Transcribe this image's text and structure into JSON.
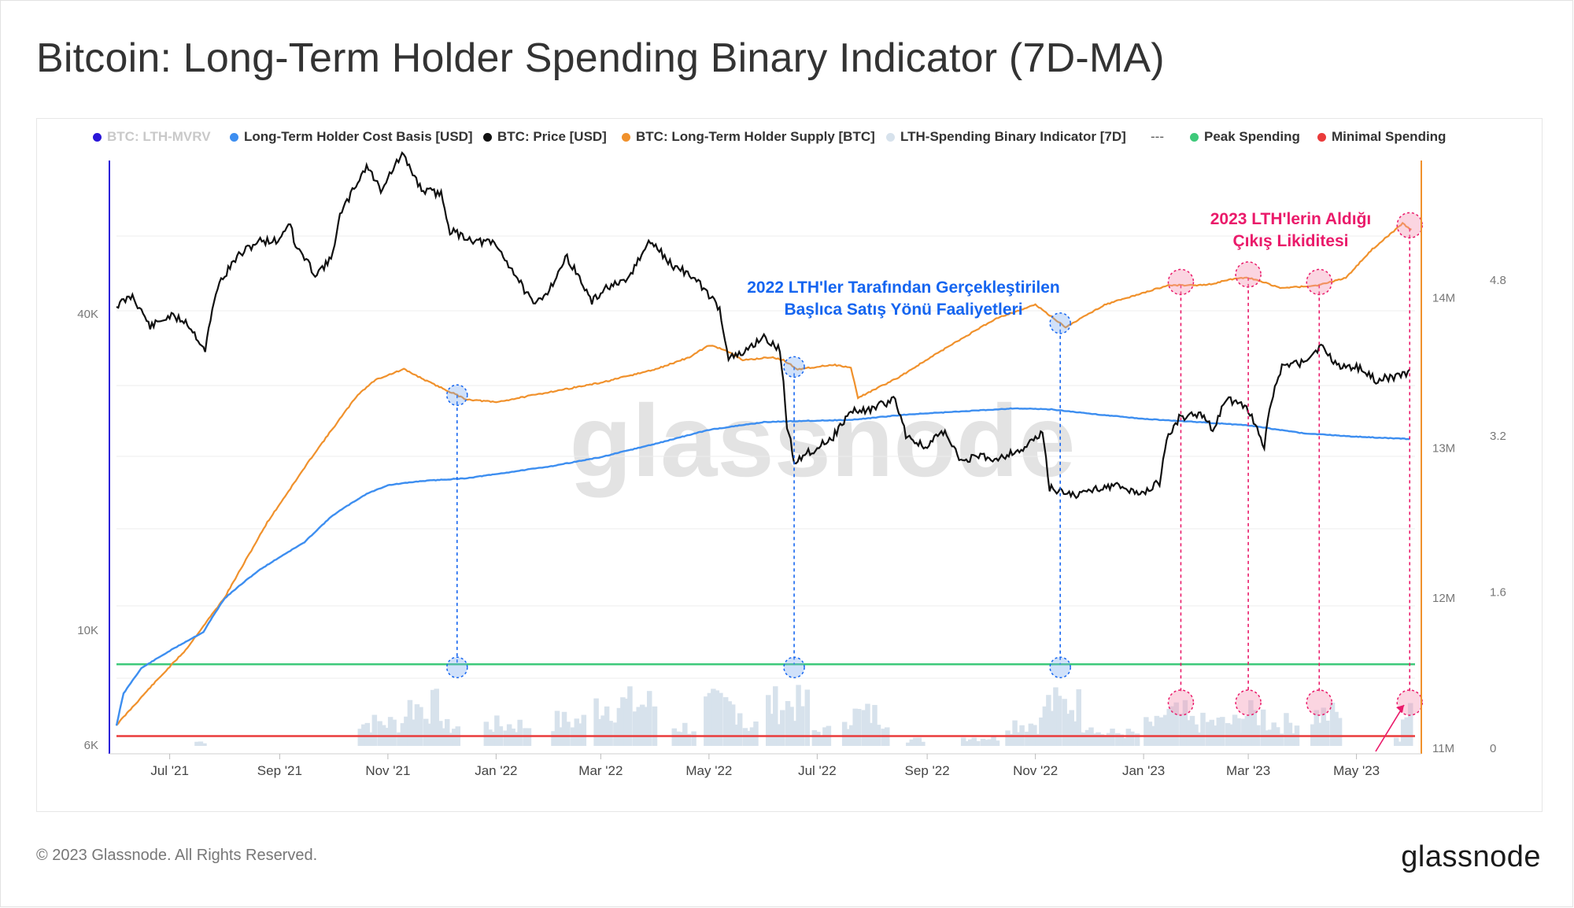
{
  "title": "Bitcoin: Long-Term Holder Spending Binary Indicator (7D-MA)",
  "footer": {
    "copyright": "© 2023 Glassnode. All Rights Reserved.",
    "logo": "glassnode"
  },
  "watermark": "glassnode",
  "legend": [
    {
      "label": "BTC: LTH-MVRV",
      "color": "#2a16d8",
      "muted": true
    },
    {
      "label": "Long-Term Holder Cost Basis [USD]",
      "color": "#3d8ef0"
    },
    {
      "label": "BTC: Price [USD]",
      "color": "#111111"
    },
    {
      "label": "BTC: Long-Term Holder Supply [BTC]",
      "color": "#f0912c"
    },
    {
      "label": "LTH-Spending Binary Indicator [7D]",
      "color": "#d7e2ec"
    },
    {
      "label": "---",
      "color": ""
    },
    {
      "label": "Peak Spending",
      "color": "#3ec97a"
    },
    {
      "label": "Minimal Spending",
      "color": "#ea3b3b"
    }
  ],
  "annotations": {
    "blue": [
      "2022 LTH'ler Tarafından Gerçekleştirilen",
      "Başlıca Satış Yönü Faaliyetleri"
    ],
    "pink": [
      "2023 LTH'lerin Aldığı",
      "Çıkış Likiditesi"
    ],
    "blue_color": "#1565f0",
    "pink_color": "#ea1a6a"
  },
  "chart_data": {
    "type": "line",
    "x_axis": {
      "range": [
        "2021-06-01",
        "2023-06-03"
      ],
      "ticks": [
        "Jul '21",
        "Sep '21",
        "Nov '21",
        "Jan '22",
        "Mar '22",
        "May '22",
        "Jul '22",
        "Sep '22",
        "Nov '22",
        "Jan '23",
        "Mar '23",
        "May '23"
      ],
      "tick_dates": [
        "2021-07-01",
        "2021-09-01",
        "2021-11-01",
        "2022-01-01",
        "2022-03-01",
        "2022-05-01",
        "2022-07-01",
        "2022-09-01",
        "2022-11-01",
        "2023-01-01",
        "2023-03-01",
        "2023-05-01"
      ]
    },
    "y_left": {
      "scale": "log",
      "range": [
        6000,
        65000
      ],
      "tick_labels": [
        "6K",
        "10K",
        "40K"
      ],
      "tick_values": [
        6000,
        10000,
        40000
      ]
    },
    "y_right_supply": {
      "range": [
        11000000,
        14900000
      ],
      "tick_labels": [
        "11M",
        "12M",
        "13M",
        "14M"
      ],
      "tick_values": [
        11000000,
        12000000,
        13000000,
        14000000
      ]
    },
    "y_right_mvrv": {
      "range": [
        0,
        6.0
      ],
      "tick_labels": [
        "0",
        "1.6",
        "3.2",
        "4.8"
      ],
      "tick_values": [
        0,
        1.6,
        3.2,
        4.8
      ]
    },
    "series": [
      {
        "name": "BTC: Price [USD]",
        "color": "#111111",
        "axis": "left",
        "points": [
          [
            "2021-06-01",
            36000
          ],
          [
            "2021-06-10",
            37500
          ],
          [
            "2021-06-20",
            33000
          ],
          [
            "2021-07-01",
            34500
          ],
          [
            "2021-07-10",
            33800
          ],
          [
            "2021-07-21",
            30000
          ],
          [
            "2021-07-28",
            39000
          ],
          [
            "2021-08-08",
            44000
          ],
          [
            "2021-08-20",
            47000
          ],
          [
            "2021-08-31",
            47000
          ],
          [
            "2021-09-07",
            51000
          ],
          [
            "2021-09-09",
            46500
          ],
          [
            "2021-09-21",
            41000
          ],
          [
            "2021-09-30",
            43500
          ],
          [
            "2021-10-05",
            52000
          ],
          [
            "2021-10-20",
            64000
          ],
          [
            "2021-10-28",
            58000
          ],
          [
            "2021-11-09",
            67000
          ],
          [
            "2021-11-20",
            58000
          ],
          [
            "2021-12-01",
            57000
          ],
          [
            "2021-12-06",
            49000
          ],
          [
            "2021-12-20",
            47000
          ],
          [
            "2021-12-31",
            46500
          ],
          [
            "2022-01-10",
            41800
          ],
          [
            "2022-01-22",
            36000
          ],
          [
            "2022-01-31",
            38500
          ],
          [
            "2022-02-10",
            44000
          ],
          [
            "2022-02-24",
            36500
          ],
          [
            "2022-03-05",
            39000
          ],
          [
            "2022-03-15",
            39500
          ],
          [
            "2022-03-29",
            47000
          ],
          [
            "2022-04-10",
            42500
          ],
          [
            "2022-04-20",
            41000
          ],
          [
            "2022-04-30",
            38000
          ],
          [
            "2022-05-07",
            35500
          ],
          [
            "2022-05-12",
            29000
          ],
          [
            "2022-05-20",
            29500
          ],
          [
            "2022-05-31",
            31700
          ],
          [
            "2022-06-10",
            30000
          ],
          [
            "2022-06-14",
            22000
          ],
          [
            "2022-06-18",
            19000
          ],
          [
            "2022-06-30",
            20000
          ],
          [
            "2022-07-10",
            21000
          ],
          [
            "2022-07-20",
            23300
          ],
          [
            "2022-07-31",
            23500
          ],
          [
            "2022-08-14",
            24500
          ],
          [
            "2022-08-20",
            21200
          ],
          [
            "2022-08-31",
            20000
          ],
          [
            "2022-09-10",
            21500
          ],
          [
            "2022-09-20",
            19000
          ],
          [
            "2022-09-30",
            19400
          ],
          [
            "2022-10-10",
            19200
          ],
          [
            "2022-10-25",
            20000
          ],
          [
            "2022-11-05",
            21300
          ],
          [
            "2022-11-09",
            17000
          ],
          [
            "2022-11-15",
            16800
          ],
          [
            "2022-11-25",
            16500
          ],
          [
            "2022-12-05",
            17000
          ],
          [
            "2022-12-15",
            17200
          ],
          [
            "2022-12-31",
            16600
          ],
          [
            "2023-01-10",
            17400
          ],
          [
            "2023-01-14",
            20800
          ],
          [
            "2023-01-21",
            22700
          ],
          [
            "2023-02-01",
            23100
          ],
          [
            "2023-02-09",
            21700
          ],
          [
            "2023-02-17",
            24500
          ],
          [
            "2023-03-01",
            23500
          ],
          [
            "2023-03-10",
            20000
          ],
          [
            "2023-03-14",
            24500
          ],
          [
            "2023-03-20",
            28000
          ],
          [
            "2023-03-31",
            28500
          ],
          [
            "2023-04-11",
            30400
          ],
          [
            "2023-04-20",
            28200
          ],
          [
            "2023-05-01",
            28000
          ],
          [
            "2023-05-12",
            26500
          ],
          [
            "2023-05-20",
            26800
          ],
          [
            "2023-05-28",
            27000
          ],
          [
            "2023-05-31",
            27700
          ]
        ]
      },
      {
        "name": "Long-Term Holder Cost Basis [USD]",
        "color": "#3d8ef0",
        "axis": "left",
        "points": [
          [
            "2021-06-01",
            6400
          ],
          [
            "2021-06-05",
            7300
          ],
          [
            "2021-06-15",
            8100
          ],
          [
            "2021-07-01",
            8700
          ],
          [
            "2021-07-20",
            9400
          ],
          [
            "2021-08-01",
            10800
          ],
          [
            "2021-08-20",
            12100
          ],
          [
            "2021-09-15",
            13600
          ],
          [
            "2021-10-01",
            15200
          ],
          [
            "2021-10-20",
            16600
          ],
          [
            "2021-11-01",
            17200
          ],
          [
            "2021-11-20",
            17500
          ],
          [
            "2021-12-15",
            17700
          ],
          [
            "2022-01-01",
            18000
          ],
          [
            "2022-02-01",
            18600
          ],
          [
            "2022-03-01",
            19300
          ],
          [
            "2022-04-01",
            20400
          ],
          [
            "2022-05-01",
            21600
          ],
          [
            "2022-06-01",
            22300
          ],
          [
            "2022-06-20",
            22400
          ],
          [
            "2022-07-20",
            22500
          ],
          [
            "2022-08-20",
            23000
          ],
          [
            "2022-09-20",
            23300
          ],
          [
            "2022-10-20",
            23600
          ],
          [
            "2022-11-10",
            23500
          ],
          [
            "2022-12-01",
            23100
          ],
          [
            "2023-01-01",
            22600
          ],
          [
            "2023-02-01",
            22300
          ],
          [
            "2023-03-01",
            22000
          ],
          [
            "2023-04-01",
            21300
          ],
          [
            "2023-05-01",
            21000
          ],
          [
            "2023-05-31",
            20800
          ]
        ]
      }
    ],
    "supply_series": {
      "name": "BTC: Long-Term Holder Supply [BTC]",
      "color": "#f0912c",
      "axis": "right",
      "points": [
        [
          "2021-06-01",
          11150000
        ],
        [
          "2021-06-20",
          11400000
        ],
        [
          "2021-07-10",
          11650000
        ],
        [
          "2021-08-01",
          12000000
        ],
        [
          "2021-08-25",
          12500000
        ],
        [
          "2021-09-20",
          12950000
        ],
        [
          "2021-10-15",
          13350000
        ],
        [
          "2021-10-25",
          13450000
        ],
        [
          "2021-11-10",
          13520000
        ],
        [
          "2021-11-25",
          13430000
        ],
        [
          "2021-12-15",
          13320000
        ],
        [
          "2022-01-01",
          13300000
        ],
        [
          "2022-02-01",
          13370000
        ],
        [
          "2022-03-01",
          13430000
        ],
        [
          "2022-04-01",
          13520000
        ],
        [
          "2022-04-20",
          13600000
        ],
        [
          "2022-05-01",
          13680000
        ],
        [
          "2022-05-10",
          13650000
        ],
        [
          "2022-05-20",
          13580000
        ],
        [
          "2022-06-05",
          13600000
        ],
        [
          "2022-06-12",
          13580000
        ],
        [
          "2022-06-20",
          13520000
        ],
        [
          "2022-07-10",
          13550000
        ],
        [
          "2022-07-20",
          13530000
        ],
        [
          "2022-07-24",
          13330000
        ],
        [
          "2022-08-15",
          13460000
        ],
        [
          "2022-09-10",
          13650000
        ],
        [
          "2022-10-10",
          13860000
        ],
        [
          "2022-11-01",
          13950000
        ],
        [
          "2022-11-18",
          13800000
        ],
        [
          "2022-12-10",
          13950000
        ],
        [
          "2023-01-15",
          14080000
        ],
        [
          "2023-02-05",
          14080000
        ],
        [
          "2023-02-20",
          14120000
        ],
        [
          "2023-03-01",
          14130000
        ],
        [
          "2023-03-20",
          14060000
        ],
        [
          "2023-04-10",
          14080000
        ],
        [
          "2023-04-25",
          14130000
        ],
        [
          "2023-05-10",
          14320000
        ],
        [
          "2023-05-27",
          14490000
        ],
        [
          "2023-06-01",
          14450000
        ]
      ]
    },
    "binary_indicator": {
      "name": "LTH-Spending Binary Indicator [7D]",
      "color": "#d7e2ec",
      "bursts": [
        [
          "2021-07-15",
          "2021-07-21",
          0.1
        ],
        [
          "2021-10-15",
          "2021-11-10",
          0.55
        ],
        [
          "2021-11-10",
          "2021-12-01",
          0.95
        ],
        [
          "2021-12-01",
          "2021-12-10",
          0.45
        ],
        [
          "2021-12-25",
          "2022-01-20",
          0.5
        ],
        [
          "2022-02-01",
          "2022-02-20",
          0.6
        ],
        [
          "2022-02-25",
          "2022-03-31",
          1.0
        ],
        [
          "2022-04-10",
          "2022-04-22",
          0.45
        ],
        [
          "2022-04-28",
          "2022-05-18",
          0.95
        ],
        [
          "2022-05-20",
          "2022-05-28",
          0.5
        ],
        [
          "2022-06-02",
          "2022-06-25",
          1.0
        ],
        [
          "2022-06-28",
          "2022-07-08",
          0.35
        ],
        [
          "2022-07-15",
          "2022-08-10",
          0.75
        ],
        [
          "2022-08-20",
          "2022-08-31",
          0.15
        ],
        [
          "2022-09-20",
          "2022-10-10",
          0.2
        ],
        [
          "2022-10-15",
          "2022-11-05",
          0.55
        ],
        [
          "2022-11-05",
          "2022-11-25",
          1.0
        ],
        [
          "2022-11-25",
          "2022-12-05",
          0.55
        ],
        [
          "2022-12-05",
          "2022-12-28",
          0.3
        ],
        [
          "2023-01-01",
          "2023-01-10",
          0.5
        ],
        [
          "2023-01-10",
          "2023-01-25",
          0.75
        ],
        [
          "2023-01-25",
          "2023-02-25",
          0.55
        ],
        [
          "2023-02-25",
          "2023-03-10",
          0.75
        ],
        [
          "2023-03-10",
          "2023-03-28",
          0.55
        ],
        [
          "2023-04-05",
          "2023-04-22",
          0.75
        ],
        [
          "2023-05-22",
          "2023-05-26",
          0.15
        ],
        [
          "2023-05-26",
          "2023-06-01",
          0.75
        ]
      ]
    },
    "threshold_lines": {
      "peak": 1.4,
      "minimal": 0.1
    },
    "markers_blue": [
      "2021-12-10",
      "2022-06-18",
      "2022-11-15"
    ],
    "markers_pink": [
      "2023-01-22",
      "2023-03-01",
      "2023-04-10",
      "2023-05-31"
    ]
  }
}
